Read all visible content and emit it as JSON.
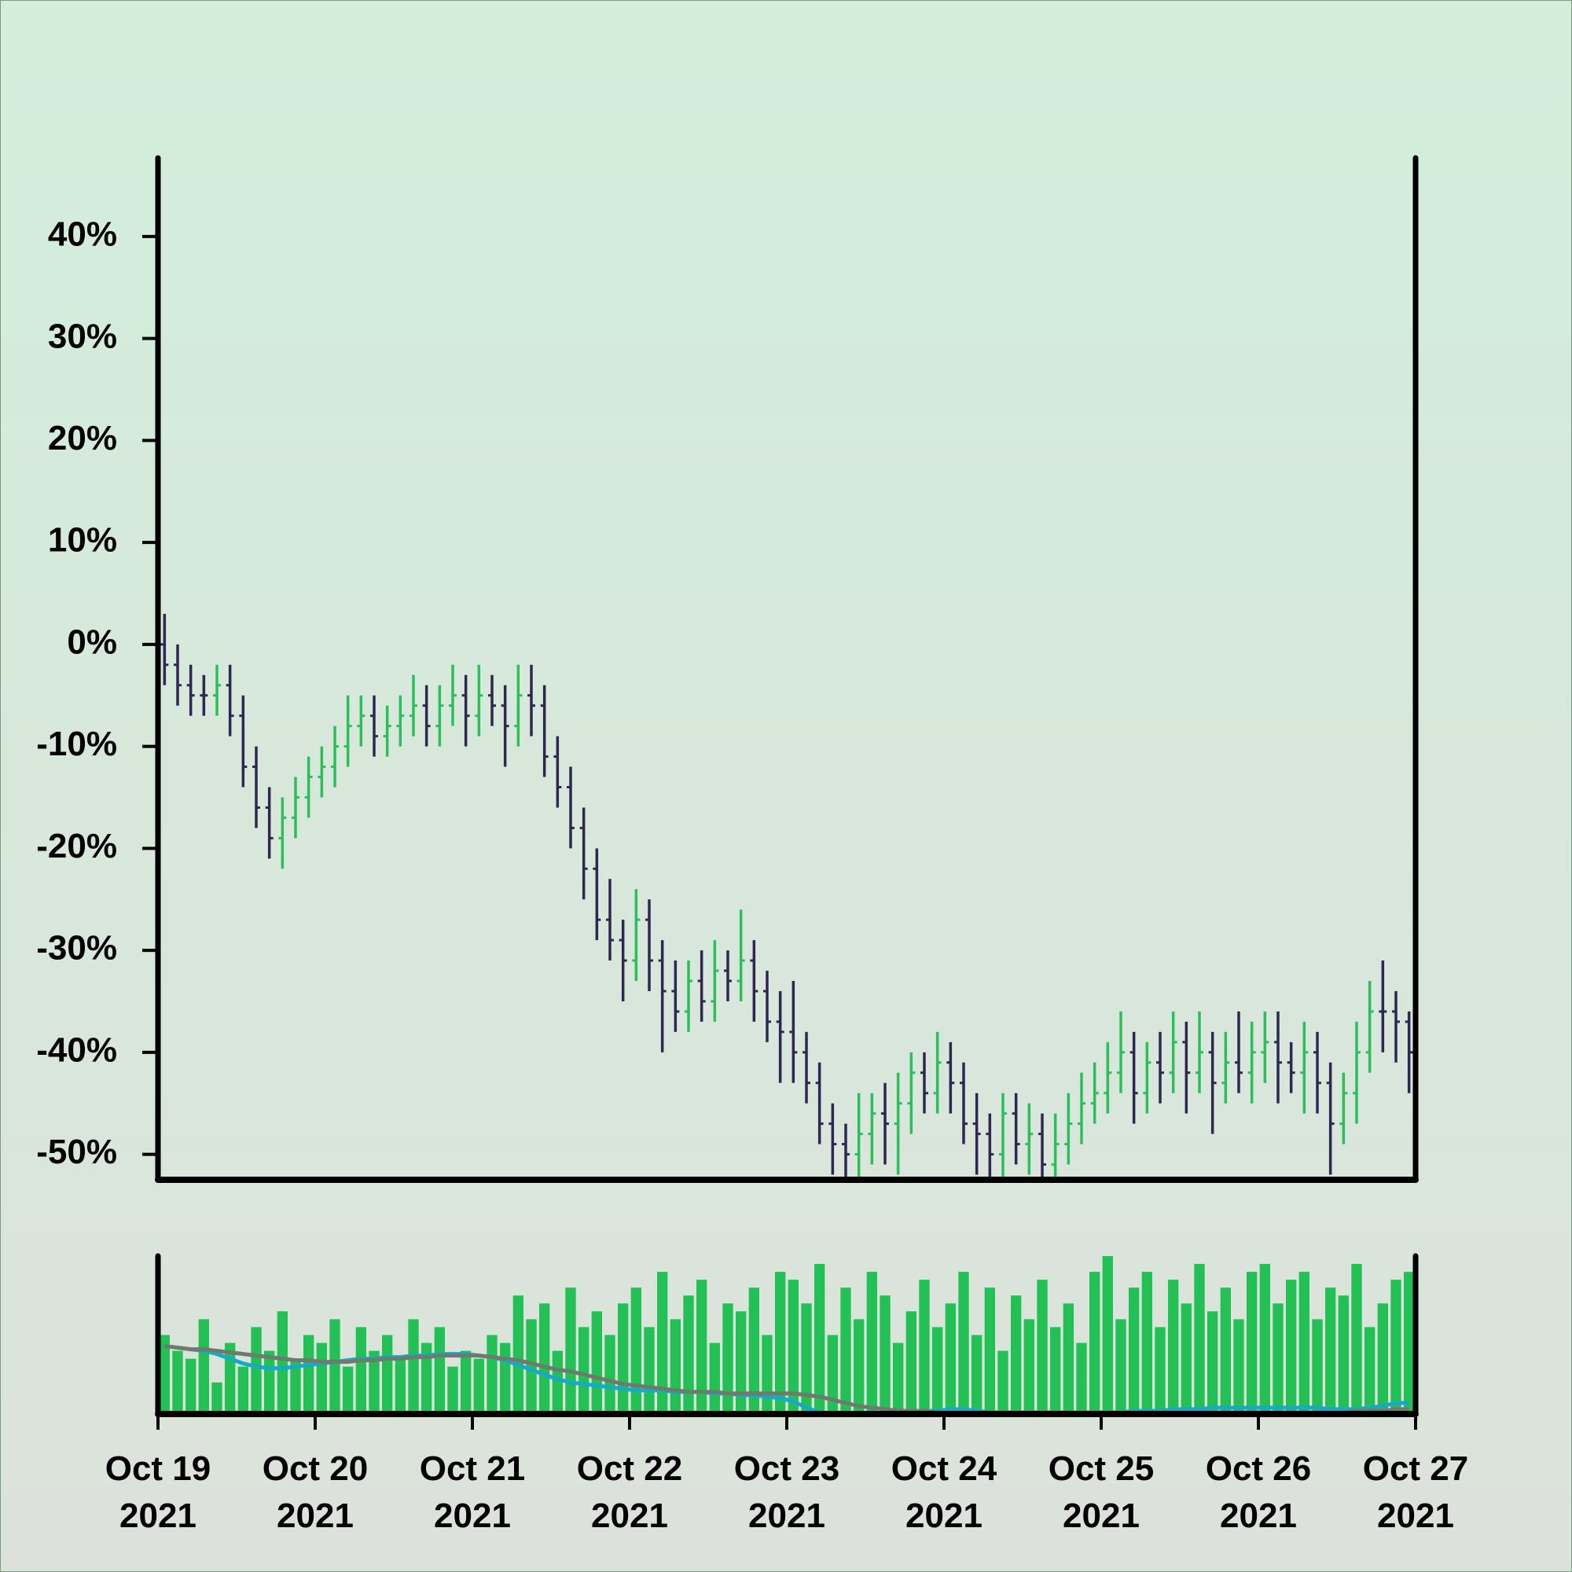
{
  "chart_data": {
    "type": "ohlc",
    "x": [
      "2021-10-19T00:00",
      "2021-10-19T02:00",
      "2021-10-19T04:00",
      "2021-10-19T06:00",
      "2021-10-19T08:00",
      "2021-10-19T10:00",
      "2021-10-19T12:00",
      "2021-10-19T14:00",
      "2021-10-19T16:00",
      "2021-10-19T18:00",
      "2021-10-19T20:00",
      "2021-10-19T22:00",
      "2021-10-20T00:00",
      "2021-10-20T02:00",
      "2021-10-20T04:00",
      "2021-10-20T06:00",
      "2021-10-20T08:00",
      "2021-10-20T10:00",
      "2021-10-20T12:00",
      "2021-10-20T14:00",
      "2021-10-20T16:00",
      "2021-10-20T18:00",
      "2021-10-20T20:00",
      "2021-10-20T22:00",
      "2021-10-21T00:00",
      "2021-10-21T02:00",
      "2021-10-21T04:00",
      "2021-10-21T06:00",
      "2021-10-21T08:00",
      "2021-10-21T10:00",
      "2021-10-21T12:00",
      "2021-10-21T14:00",
      "2021-10-21T16:00",
      "2021-10-21T18:00",
      "2021-10-21T20:00",
      "2021-10-21T22:00",
      "2021-10-22T00:00",
      "2021-10-22T02:00",
      "2021-10-22T04:00",
      "2021-10-22T06:00",
      "2021-10-22T08:00",
      "2021-10-22T10:00",
      "2021-10-22T12:00",
      "2021-10-22T14:00",
      "2021-10-22T16:00",
      "2021-10-22T18:00",
      "2021-10-22T20:00",
      "2021-10-22T22:00",
      "2021-10-23T00:00",
      "2021-10-23T02:00",
      "2021-10-23T04:00",
      "2021-10-23T06:00",
      "2021-10-23T08:00",
      "2021-10-23T10:00",
      "2021-10-23T12:00",
      "2021-10-23T14:00",
      "2021-10-23T16:00",
      "2021-10-23T18:00",
      "2021-10-23T20:00",
      "2021-10-23T22:00",
      "2021-10-24T00:00",
      "2021-10-24T02:00",
      "2021-10-24T04:00",
      "2021-10-24T06:00",
      "2021-10-24T08:00",
      "2021-10-24T10:00",
      "2021-10-24T12:00",
      "2021-10-24T14:00",
      "2021-10-24T16:00",
      "2021-10-24T18:00",
      "2021-10-24T20:00",
      "2021-10-24T22:00",
      "2021-10-25T00:00",
      "2021-10-25T02:00",
      "2021-10-25T04:00",
      "2021-10-25T06:00",
      "2021-10-25T08:00",
      "2021-10-25T10:00",
      "2021-10-25T12:00",
      "2021-10-25T14:00",
      "2021-10-25T16:00",
      "2021-10-25T18:00",
      "2021-10-25T20:00",
      "2021-10-25T22:00",
      "2021-10-26T00:00",
      "2021-10-26T02:00",
      "2021-10-26T04:00",
      "2021-10-26T06:00",
      "2021-10-26T08:00",
      "2021-10-26T10:00",
      "2021-10-26T12:00",
      "2021-10-26T14:00",
      "2021-10-26T16:00",
      "2021-10-26T18:00",
      "2021-10-26T20:00",
      "2021-10-26T22:00"
    ],
    "open": [
      0,
      -2,
      -4,
      -5,
      -5,
      -4,
      -7,
      -12,
      -16,
      -19,
      -17,
      -15,
      -13,
      -12,
      -10,
      -8,
      -7,
      -9,
      -8,
      -7,
      -6,
      -8,
      -6,
      -5,
      -7,
      -5,
      -6,
      -8,
      -5,
      -6,
      -11,
      -14,
      -18,
      -22,
      -27,
      -29,
      -31,
      -27,
      -31,
      -34,
      -36,
      -33,
      -35,
      -32,
      -33,
      -31,
      -34,
      -37,
      -38,
      -40,
      -43,
      -47,
      -49,
      -50,
      -48,
      -46,
      -47,
      -45,
      -42,
      -44,
      -41,
      -43,
      -47,
      -48,
      -50,
      -46,
      -49,
      -48,
      -51,
      -49,
      -47,
      -45,
      -44,
      -42,
      -40,
      -44,
      -41,
      -42,
      -39,
      -42,
      -40,
      -43,
      -41,
      -42,
      -40,
      -39,
      -41,
      -42,
      -40,
      -43,
      -47,
      -44,
      -40,
      -36,
      -36,
      -37
    ],
    "high": [
      3,
      0,
      -2,
      -3,
      -2,
      -2,
      -5,
      -10,
      -14,
      -15,
      -13,
      -11,
      -10,
      -8,
      -5,
      -5,
      -5,
      -6,
      -5,
      -3,
      -4,
      -4,
      -2,
      -3,
      -2,
      -3,
      -4,
      -2,
      -2,
      -4,
      -9,
      -12,
      -16,
      -20,
      -23,
      -27,
      -24,
      -25,
      -29,
      -31,
      -31,
      -30,
      -29,
      -30,
      -26,
      -29,
      -32,
      -34,
      -33,
      -38,
      -41,
      -45,
      -47,
      -44,
      -44,
      -43,
      -42,
      -40,
      -40,
      -38,
      -39,
      -41,
      -44,
      -46,
      -44,
      -44,
      -45,
      -46,
      -46,
      -44,
      -42,
      -41,
      -39,
      -36,
      -38,
      -39,
      -38,
      -36,
      -37,
      -36,
      -38,
      -38,
      -36,
      -37,
      -36,
      -36,
      -39,
      -37,
      -38,
      -41,
      -42,
      -37,
      -33,
      -31,
      -34,
      -36
    ],
    "low": [
      -4,
      -6,
      -7,
      -7,
      -7,
      -9,
      -14,
      -18,
      -21,
      -22,
      -19,
      -17,
      -15,
      -14,
      -12,
      -10,
      -11,
      -11,
      -10,
      -9,
      -10,
      -10,
      -8,
      -10,
      -9,
      -8,
      -12,
      -10,
      -9,
      -13,
      -16,
      -20,
      -25,
      -29,
      -31,
      -35,
      -33,
      -34,
      -40,
      -38,
      -38,
      -37,
      -37,
      -35,
      -35,
      -37,
      -39,
      -43,
      -43,
      -45,
      -49,
      -52,
      -53,
      -53,
      -51,
      -51,
      -52,
      -48,
      -46,
      -46,
      -46,
      -49,
      -52,
      -53,
      -53,
      -51,
      -52,
      -53,
      -53,
      -51,
      -49,
      -47,
      -46,
      -44,
      -47,
      -46,
      -45,
      -44,
      -46,
      -44,
      -48,
      -45,
      -44,
      -45,
      -43,
      -45,
      -44,
      -46,
      -46,
      -52,
      -49,
      -47,
      -42,
      -40,
      -41,
      -44
    ],
    "close": [
      -2,
      -4,
      -5,
      -5,
      -4,
      -7,
      -12,
      -16,
      -19,
      -17,
      -15,
      -13,
      -12,
      -10,
      -8,
      -7,
      -9,
      -8,
      -7,
      -6,
      -8,
      -6,
      -5,
      -7,
      -5,
      -6,
      -8,
      -5,
      -6,
      -11,
      -14,
      -18,
      -22,
      -27,
      -29,
      -31,
      -27,
      -31,
      -34,
      -36,
      -33,
      -35,
      -32,
      -33,
      -31,
      -34,
      -37,
      -38,
      -40,
      -43,
      -47,
      -49,
      -50,
      -48,
      -46,
      -47,
      -45,
      -42,
      -44,
      -41,
      -43,
      -47,
      -48,
      -50,
      -46,
      -49,
      -48,
      -51,
      -49,
      -47,
      -45,
      -44,
      -42,
      -40,
      -44,
      -41,
      -42,
      -39,
      -42,
      -40,
      -43,
      -41,
      -42,
      -40,
      -39,
      -41,
      -42,
      -40,
      -43,
      -47,
      -44,
      -40,
      -36,
      -36,
      -37,
      -40
    ],
    "up_color": "#2dbe5c",
    "down_color": "#2e2850",
    "ylim": [
      -52.5,
      47.7
    ],
    "yticks": [
      {
        "value": -50,
        "label": "-50%"
      },
      {
        "value": -40,
        "label": "-40%"
      },
      {
        "value": -30,
        "label": "-30%"
      },
      {
        "value": -20,
        "label": "-20%"
      },
      {
        "value": -10,
        "label": "-10%"
      },
      {
        "value": 0,
        "label": "0%"
      },
      {
        "value": 10,
        "label": "10%"
      },
      {
        "value": 20,
        "label": "20%"
      },
      {
        "value": 30,
        "label": "30%"
      },
      {
        "value": 40,
        "label": "40%"
      }
    ],
    "xlim": [
      "2021-10-19T00:00",
      "2021-10-27T00:00"
    ],
    "xticks": [
      {
        "value": "2021-10-19T00:00",
        "label": "Oct 19\n2021"
      },
      {
        "value": "2021-10-20T00:00",
        "label": "Oct 20\n2021"
      },
      {
        "value": "2021-10-21T00:00",
        "label": "Oct 21\n2021"
      },
      {
        "value": "2021-10-22T00:00",
        "label": "Oct 22\n2021"
      },
      {
        "value": "2021-10-23T00:00",
        "label": "Oct 23\n2021"
      },
      {
        "value": "2021-10-24T00:00",
        "label": "Oct 24\n2021"
      },
      {
        "value": "2021-10-25T00:00",
        "label": "Oct 25\n2021"
      },
      {
        "value": "2021-10-26T00:00",
        "label": "Oct 26\n2021"
      },
      {
        "value": "2021-10-27T00:00",
        "label": "Oct 27\n2021"
      }
    ],
    "volume": {
      "color": "#22c055",
      "ylim": [
        0,
        100
      ],
      "values": [
        50,
        40,
        35,
        60,
        20,
        45,
        30,
        55,
        40,
        65,
        35,
        50,
        45,
        60,
        30,
        55,
        40,
        50,
        35,
        60,
        45,
        55,
        30,
        40,
        35,
        50,
        45,
        75,
        60,
        70,
        40,
        80,
        55,
        65,
        50,
        70,
        80,
        55,
        90,
        60,
        75,
        85,
        45,
        70,
        65,
        80,
        50,
        90,
        85,
        70,
        95,
        50,
        80,
        60,
        90,
        75,
        45,
        65,
        85,
        55,
        70,
        90,
        50,
        80,
        40,
        75,
        60,
        85,
        55,
        70,
        45,
        90,
        100,
        60,
        80,
        90,
        55,
        85,
        70,
        95,
        65,
        80,
        60,
        90,
        95,
        70,
        85,
        90,
        60,
        80,
        75,
        95,
        55,
        70,
        85,
        90
      ],
      "averages": [
        {
          "color": "#17a9c6",
          "values": [
            43,
            42,
            41,
            40,
            38,
            35,
            32,
            30,
            29,
            29,
            30,
            31,
            32,
            33,
            34,
            35,
            35,
            36,
            36,
            37,
            37,
            38,
            38,
            38,
            37,
            36,
            34,
            31,
            28,
            25,
            22,
            20,
            19,
            18,
            17,
            16,
            15,
            15,
            15,
            14,
            14,
            14,
            13,
            13,
            12,
            12,
            11,
            10,
            8,
            4,
            1,
            0,
            0,
            0,
            0,
            1,
            2,
            2,
            2,
            2,
            3,
            3,
            2,
            1,
            1,
            0,
            0,
            0,
            0,
            0,
            0,
            1,
            1,
            1,
            2,
            2,
            2,
            3,
            3,
            3,
            4,
            4,
            4,
            4,
            4,
            4,
            4,
            4,
            4,
            3,
            3,
            3,
            4,
            5,
            7,
            7
          ]
        },
        {
          "color": "#6e7a6c",
          "values": [
            43,
            42,
            41,
            41,
            40,
            39,
            38,
            37,
            36,
            35,
            34,
            34,
            33,
            33,
            33,
            34,
            34,
            35,
            35,
            36,
            36,
            37,
            37,
            37,
            37,
            36,
            35,
            34,
            32,
            30,
            28,
            27,
            25,
            23,
            21,
            19,
            18,
            17,
            16,
            15,
            14,
            14,
            14,
            13,
            13,
            13,
            13,
            13,
            13,
            12,
            11,
            9,
            7,
            5,
            4,
            3,
            2,
            2,
            2,
            1,
            1,
            1,
            1,
            1,
            1,
            1,
            1,
            1,
            1,
            1,
            1,
            1,
            1,
            1,
            1,
            1,
            1,
            1,
            1,
            1,
            1,
            1,
            1,
            1,
            1,
            1,
            1,
            1,
            1,
            1,
            1,
            2,
            2,
            2,
            3,
            3
          ]
        }
      ]
    }
  }
}
